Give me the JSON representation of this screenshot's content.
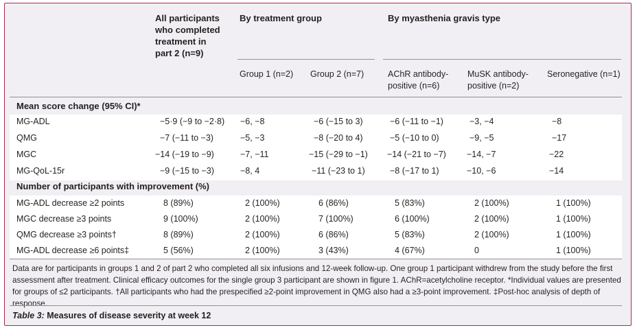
{
  "table": {
    "header": {
      "all": [
        "All participants",
        "who completed",
        "treatment in",
        "part 2 (n=9)"
      ],
      "by_treatment_group": "By treatment group",
      "by_mg_type": "By myasthenia gravis type",
      "group1": "Group 1 (n=2)",
      "group2": "Group 2 (n=7)",
      "achr": [
        "AChR antibody-",
        "positive (n=6)"
      ],
      "musk": [
        "MuSK antibody-",
        "positive (n=2)"
      ],
      "seroneg": "Seronegative (n=1)"
    },
    "sections": [
      {
        "title": "Mean score change (95% CI)*",
        "rows": [
          {
            "label": "MG-ADL",
            "cells": [
              "−5·9 (−9 to −2·8)",
              "−6, −8",
              "−6 (−15 to 3)",
              "−6 (−11 to −1)",
              "−3, −4",
              "−8"
            ]
          },
          {
            "label": "QMG",
            "cells": [
              "−7 (−11 to −3)",
              "−5, −3",
              "−8 (−20 to 4)",
              "−5 (−10 to 0)",
              "−9, −5",
              "−17"
            ]
          },
          {
            "label": "MGC",
            "cells": [
              "−14 (−19 to −9)",
              "−7, −11",
              "−15 (−29 to −1)",
              "−14 (−21 to −7)",
              "−14, −7",
              "−22"
            ]
          },
          {
            "label": "MG-QoL-15r",
            "cells": [
              "−9 (−15 to −3)",
              "−8, 4",
              "−11 (−23 to 1)",
              "−8 (−17 to 1)",
              "−10, −6",
              "−14"
            ]
          }
        ]
      },
      {
        "title": "Number of participants with improvement (%)",
        "rows": [
          {
            "label": "MG-ADL decrease ≥2 points",
            "cells": [
              "8 (89%)",
              "2 (100%)",
              "6 (86%)",
              "5 (83%)",
              "2 (100%)",
              "1 (100%)"
            ]
          },
          {
            "label": "MGC decrease ≥3 points",
            "cells": [
              "9 (100%)",
              "2 (100%)",
              "7 (100%)",
              "6 (100%)",
              "2 (100%)",
              "1 (100%)"
            ]
          },
          {
            "label": "QMG decrease ≥3 points†",
            "cells": [
              "8 (89%)",
              "2 (100%)",
              "6 (86%)",
              "5 (83%)",
              "2 (100%)",
              "1 (100%)"
            ]
          },
          {
            "label": "MG-ADL decrease ≥6 points‡",
            "cells": [
              "5 (56%)",
              "2 (100%)",
              "3 (43%)",
              "4 (67%)",
              "0",
              "1 (100%)"
            ]
          }
        ]
      }
    ]
  },
  "footnote": "Data are for participants in groups 1 and 2 of part 2 who completed all six infusions and 12-week follow-up. One group 1 participant withdrew from the study before the first assessment after treatment. Clinical efficacy outcomes for the single group 3 participant are shown in figure 1. AChR=acetylcholine receptor. *Individual values are presented for groups of ≤2 participants. †All participants who had the prespecified ≥2-point improvement in QMG also had a ≥3-point improvement. ‡Post-hoc analysis of depth of response.",
  "caption": {
    "label": "Table 3:",
    "text": "Measures of disease severity at week 12"
  }
}
